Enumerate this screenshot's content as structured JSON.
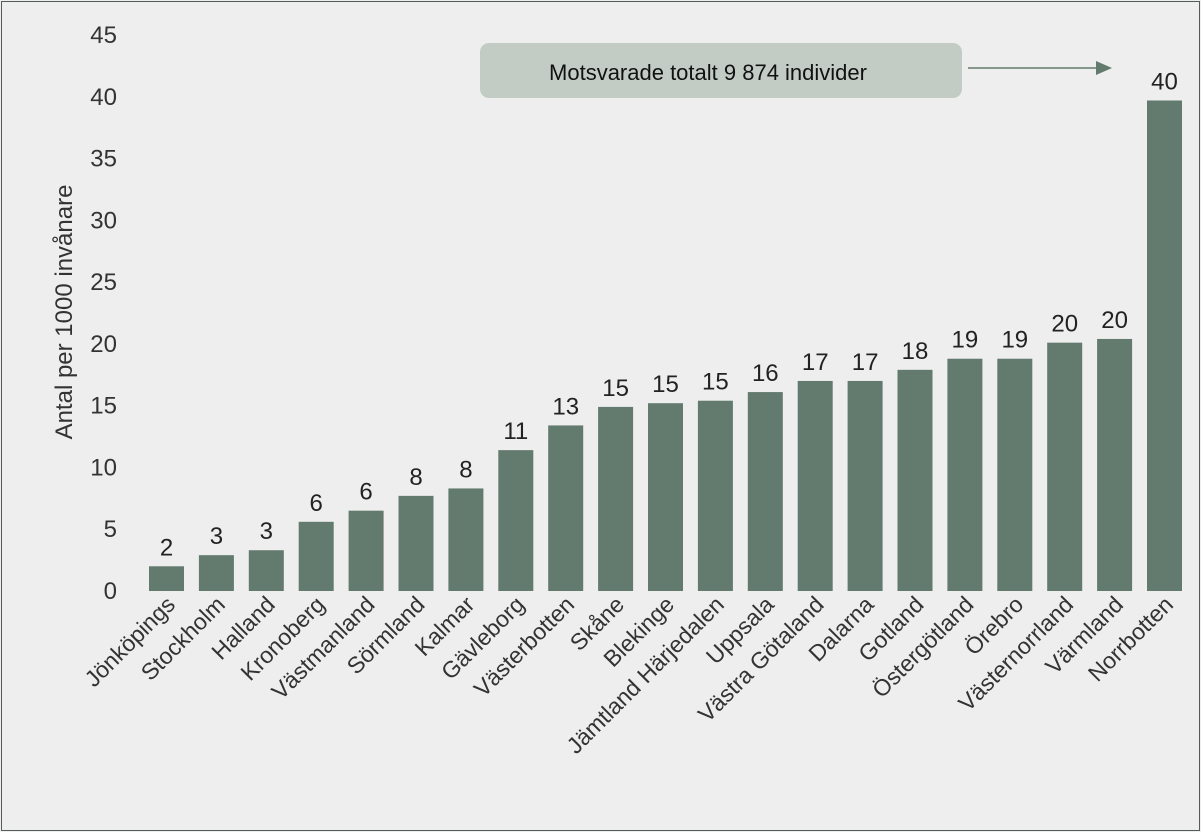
{
  "chart_data": {
    "type": "bar",
    "ylabel": "Antal per 1000 invånare",
    "ylim": [
      0,
      45
    ],
    "yticks": [
      0,
      5,
      10,
      15,
      20,
      25,
      30,
      35,
      40,
      45
    ],
    "grid": false,
    "legend": "none",
    "bar_color": "#637a6e",
    "categories": [
      "Jönköpings",
      "Stockholm",
      "Halland",
      "Kronoberg",
      "Västmanland",
      "Sörmland",
      "Kalmar",
      "Gävleborg",
      "Västerbotten",
      "Skåne",
      "Blekinge",
      "Jämtland Härjedalen",
      "Uppsala",
      "Västra Götaland",
      "Dalarna",
      "Gotland",
      "Östergötland",
      "Örebro",
      "Västernorrland",
      "Värmland",
      "Norrbotten"
    ],
    "values": [
      2.0,
      2.9,
      3.3,
      5.6,
      6.5,
      7.7,
      8.3,
      11.4,
      13.4,
      14.9,
      15.2,
      15.4,
      16.1,
      17.0,
      17.0,
      17.9,
      18.8,
      18.8,
      20.1,
      20.4,
      39.7
    ],
    "data_labels": [
      "2",
      "3",
      "3",
      "6",
      "6",
      "8",
      "8",
      "11",
      "13",
      "15",
      "15",
      "15",
      "16",
      "17",
      "17",
      "18",
      "19",
      "19",
      "20",
      "20",
      "40"
    ],
    "annotation": {
      "text": "Motsvarade totalt 9 874 individer",
      "box_color": "#c2ccc4",
      "arrow_color": "#637a6e"
    }
  }
}
